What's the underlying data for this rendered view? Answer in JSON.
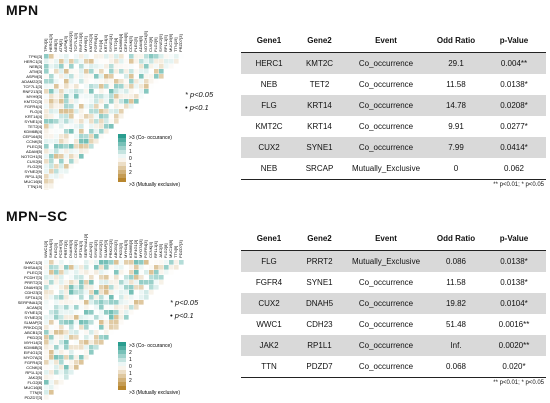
{
  "panels": [
    {
      "title": "MPN",
      "heatmap": {
        "genes": [
          "TPKI[3]",
          "HERC1[3]",
          "NEB[3]",
          "ATM[3]",
          "ASPM[3]",
          "ADAM22[3]",
          "TCF7L1[3]",
          "RNF213[3]",
          "MYH9[3]",
          "KMT2C[3]",
          "FGFR4[4]",
          "FLG[4]",
          "KRT14[4]",
          "SYNE1[4]",
          "TET2[4]",
          "KDM6B[4]",
          "CEP164[5]",
          "CCNK[5]",
          "PLEC[5]",
          "ADAM[5]",
          "NOTCH1[5]",
          "CUX2[6]",
          "FLG2[9]",
          "SYNE2[9]",
          "RP1L1[5]",
          "MUC16[6]",
          "TTN[19]",
          "PRZD7[3]"
        ],
        "legend_top": ">3 (Co- occurance)",
        "legend_bottom": ">3 (Mutually exclusive)",
        "legend_ticks": [
          "2",
          "1",
          "0",
          "1",
          "2"
        ],
        "axis_label": "-log10(p-value)"
      },
      "significance": [
        "* p<0.05",
        "• p<0.1"
      ],
      "table": {
        "headers": [
          "Gene1",
          "Gene2",
          "Event",
          "Odd Ratio",
          "p-Value"
        ],
        "rows": [
          [
            "HERC1",
            "KMT2C",
            "Co_occurrence",
            "29.1",
            "0.004**"
          ],
          [
            "NEB",
            "TET2",
            "Co_occurrence",
            "11.58",
            "0.0138*"
          ],
          [
            "FLG",
            "KRT14",
            "Co_occurrence",
            "14.78",
            "0.0208*"
          ],
          [
            "KMT2C",
            "KRT14",
            "Co_occurrence",
            "9.91",
            "0.0277*"
          ],
          [
            "CUX2",
            "SYNE1",
            "Co_occurrence",
            "7.99",
            "0.0414*"
          ],
          [
            "NEB",
            "SRCAP",
            "Mutually_Exclusive",
            "0",
            "0.062"
          ]
        ],
        "footnote": "** p<0.01;   * p<0.05"
      }
    },
    {
      "title": "MPN−SC",
      "heatmap": {
        "genes": [
          "WWC1[3]",
          "SHISA4[3]",
          "PLEC[3]",
          "PCDH7[3]",
          "PRRT2[3]",
          "DNAH5[3]",
          "CDH23[3]",
          "SPTA1[3]",
          "SERPINA1[3]",
          "ACAN[3]",
          "SYNE1[3]",
          "SYNE2[3]",
          "SLMAP[3]",
          "PRKDC[3]",
          "ABCB1[3]",
          "PKD2[3]",
          "MYH14[3]",
          "KDM6B[3]",
          "EIF4G1[3]",
          "MYO7A[3]",
          "FGFR4[3]",
          "CCNK[4]",
          "RP1L1[4]",
          "JAK2[5]",
          "FLG2[8]",
          "MUC16[8]",
          "TTN[9]",
          "PDZD7[3]"
        ],
        "legend_top": ">3 (Co- occurance)",
        "legend_bottom": ">3 (Mutually exclusive)",
        "legend_ticks": [
          "2",
          "1",
          "0",
          "1",
          "2"
        ],
        "axis_label": "-log10(p-value)"
      },
      "significance": [
        "* p<0.05",
        "• p<0.1"
      ],
      "table": {
        "headers": [
          "Gene1",
          "Gene2",
          "Event",
          "Odd Ratio",
          "p-Value"
        ],
        "rows": [
          [
            "FLG",
            "PRRT2",
            "Mutually_Exclusive",
            "0.086",
            "0.0138*"
          ],
          [
            "FGFR4",
            "SYNE1",
            "Co_occurrence",
            "11.58",
            "0.0138*"
          ],
          [
            "CUX2",
            "DNAH5",
            "Co_occurrence",
            "19.82",
            "0.0104*"
          ],
          [
            "WWC1",
            "CDH23",
            "Co_occurrence",
            "51.48",
            "0.0016**"
          ],
          [
            "JAK2",
            "RP1L1",
            "Co_occurrence",
            "Inf.",
            "0.0020**"
          ],
          [
            "TTN",
            "PDZD7",
            "Co_occurrence",
            "0.068",
            "0.020*"
          ]
        ],
        "footnote": "** p<0.01;   * p<0.05"
      }
    }
  ],
  "colors": {
    "co_occurrence": "#2a9d8f",
    "mutually_exclusive": "#b8862e",
    "row_shade": "#d9d9d9"
  }
}
